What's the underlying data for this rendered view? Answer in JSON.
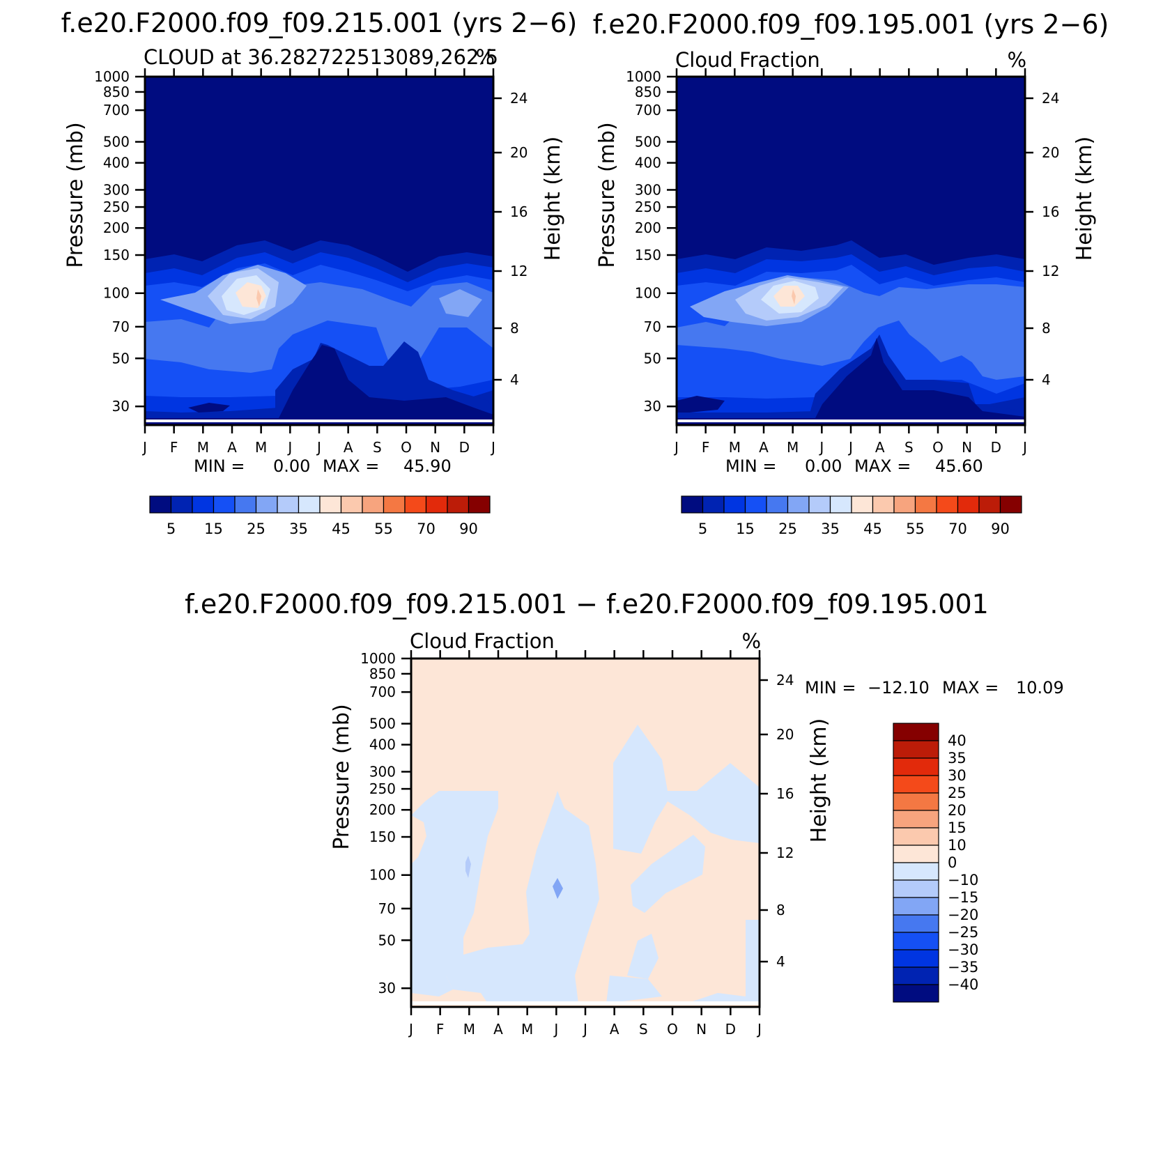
{
  "chart_data": [
    {
      "type": "contour",
      "title": "f.e20.F2000.f09_f09.215.001 (yrs 2−6)",
      "subtitle_left": "CLOUD at 36.282722513089,262.5",
      "units": "%",
      "ylabel": "Pressure (mb)",
      "y2label": "Height (km)",
      "months": [
        "J",
        "F",
        "M",
        "A",
        "M",
        "J",
        "J",
        "A",
        "S",
        "O",
        "N",
        "D",
        "J"
      ],
      "pressure_ticks": [
        "30",
        "50",
        "70",
        "100",
        "150",
        "200",
        "250",
        "300",
        "400",
        "500",
        "700",
        "850",
        "1000"
      ],
      "height_ticks": [
        "24",
        "20",
        "16",
        "12",
        "8",
        "4"
      ],
      "min_label": "MIN =",
      "min_value": "0.00",
      "max_label": "MAX =",
      "max_value": "45.90",
      "colorbar_labels": [
        "5",
        "15",
        "25",
        "35",
        "45",
        "55",
        "70",
        "90"
      ]
    },
    {
      "type": "contour",
      "title": "f.e20.F2000.f09_f09.195.001 (yrs 2−6)",
      "subtitle_left": "Cloud Fraction",
      "units": "%",
      "ylabel": "Pressure (mb)",
      "y2label": "Height (km)",
      "months": [
        "J",
        "F",
        "M",
        "A",
        "M",
        "J",
        "J",
        "A",
        "S",
        "O",
        "N",
        "D",
        "J"
      ],
      "pressure_ticks": [
        "30",
        "50",
        "70",
        "100",
        "150",
        "200",
        "250",
        "300",
        "400",
        "500",
        "700",
        "850",
        "1000"
      ],
      "height_ticks": [
        "24",
        "20",
        "16",
        "12",
        "8",
        "4"
      ],
      "min_label": "MIN =",
      "min_value": "0.00",
      "max_label": "MAX =",
      "max_value": "45.60",
      "colorbar_labels": [
        "5",
        "15",
        "25",
        "35",
        "45",
        "55",
        "70",
        "90"
      ]
    },
    {
      "type": "contour",
      "title": "f.e20.F2000.f09_f09.215.001 − f.e20.F2000.f09_f09.195.001",
      "subtitle_left": "Cloud Fraction",
      "units": "%",
      "ylabel": "Pressure (mb)",
      "y2label": "Height (km)",
      "months": [
        "J",
        "F",
        "M",
        "A",
        "M",
        "J",
        "J",
        "A",
        "S",
        "O",
        "N",
        "D",
        "J"
      ],
      "pressure_ticks": [
        "30",
        "50",
        "70",
        "100",
        "150",
        "200",
        "250",
        "300",
        "400",
        "500",
        "700",
        "850",
        "1000"
      ],
      "height_ticks": [
        "24",
        "20",
        "16",
        "12",
        "8",
        "4"
      ],
      "min_label": "MIN =",
      "min_value": "−12.10",
      "max_label": "MAX =",
      "max_value": "10.09",
      "colorbar_labels": [
        "40",
        "35",
        "30",
        "25",
        "20",
        "15",
        "10",
        "0",
        "−10",
        "−15",
        "−20",
        "−25",
        "−30",
        "−35",
        "−40"
      ]
    }
  ],
  "colors": {
    "seq": [
      "#000c80",
      "#0023b2",
      "#0035e1",
      "#1550f5",
      "#4678f0",
      "#82a6f5",
      "#b4cbfa",
      "#d6e7fd",
      "#fde6d7",
      "#fbc9ae",
      "#f7a47e",
      "#f47843",
      "#f44a1a",
      "#e22a0b",
      "#bc1c08",
      "#850000"
    ],
    "div": [
      "#850000",
      "#bc1c08",
      "#e22a0b",
      "#f44a1a",
      "#f47843",
      "#f7a47e",
      "#fbc9ae",
      "#fde6d7",
      "#d6e7fd",
      "#b4cbfa",
      "#82a6f5",
      "#4678f0",
      "#1550f5",
      "#0035e1",
      "#0023b2",
      "#000c80"
    ]
  }
}
